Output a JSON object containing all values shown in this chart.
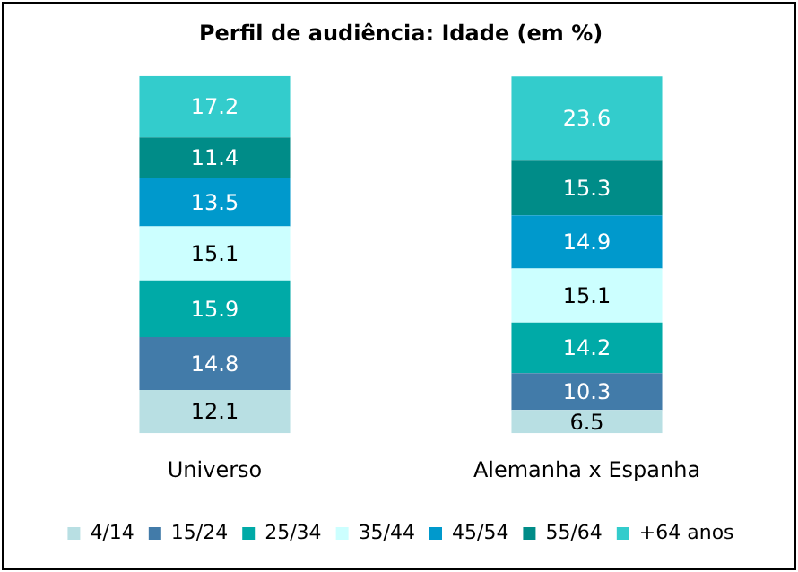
{
  "chart_data": {
    "type": "bar",
    "title": "Perfil de audiência: Idade (em %)",
    "categories": [
      "Universo",
      "Alemanha x Espanha"
    ],
    "stacked": true,
    "data_labels": true,
    "legend": "bottom",
    "grid": false,
    "series": [
      {
        "name": "4/14",
        "color": "#b8dfe3",
        "values": [
          12.1,
          6.5
        ]
      },
      {
        "name": "15/24",
        "color": "#427ba9",
        "values": [
          14.8,
          10.3
        ]
      },
      {
        "name": "25/34",
        "color": "#00aaa7",
        "values": [
          15.9,
          14.2
        ]
      },
      {
        "name": "35/44",
        "color": "#ccffff",
        "values": [
          15.1,
          15.1
        ]
      },
      {
        "name": "45/54",
        "color": "#0099cc",
        "values": [
          13.5,
          14.9
        ]
      },
      {
        "name": "55/64",
        "color": "#008c88",
        "values": [
          11.4,
          15.3
        ]
      },
      {
        "name": "+64 anos",
        "color": "#33cccc",
        "values": [
          17.2,
          23.6
        ]
      }
    ]
  }
}
